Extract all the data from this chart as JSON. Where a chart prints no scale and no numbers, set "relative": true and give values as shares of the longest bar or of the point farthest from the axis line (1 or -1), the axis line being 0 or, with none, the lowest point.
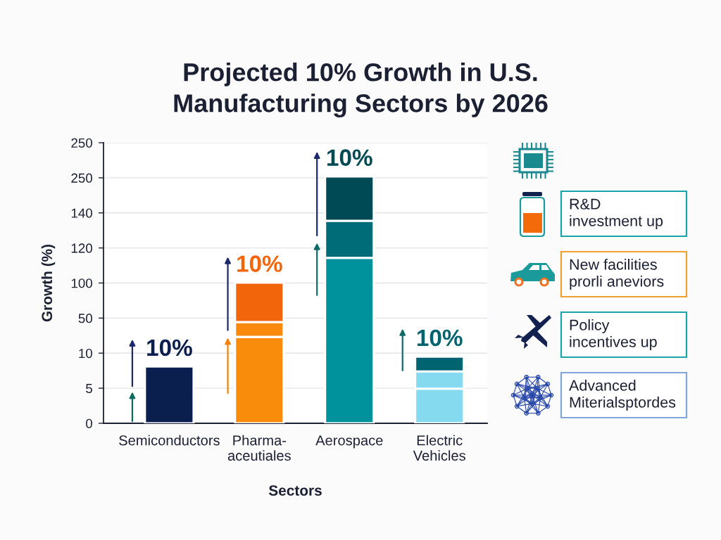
{
  "chart_data": {
    "type": "bar",
    "title": "Projected 10% Growth in U.S.\nManufacturing Sectors by 2026",
    "xlabel": "Sectors",
    "ylabel": "Growth (%)",
    "categories": [
      "Semiconductors",
      "Pharma-\naceutiales",
      "Aerospace",
      "Electric\nVehicles"
    ],
    "y_categories": [
      "250",
      "250",
      "140",
      "120",
      "100",
      "50",
      "10",
      "5",
      "0"
    ],
    "relative": true,
    "stacked": true,
    "series": [
      {
        "colors": [
          "#0b1f4f",
          "#f98c0a",
          "#00929c",
          "#86daf0"
        ],
        "values": [
          0.23,
          0.35,
          0.67,
          0.14
        ]
      },
      {
        "colors": [
          null,
          "#f98a0e",
          "#006c78",
          "#86daf0"
        ],
        "values": [
          null,
          0.06,
          0.15,
          0.07
        ]
      },
      {
        "colors": [
          null,
          "#f2650a",
          "#004a55",
          "#006470"
        ],
        "values": [
          null,
          0.16,
          0.18,
          0.06
        ]
      }
    ],
    "grid": "y",
    "annotations": [
      {
        "text": "10%",
        "x": "Semiconductors",
        "y": 0.23
      },
      {
        "text": "10%",
        "x": "Pharma-\naceutiales",
        "y": 0.57
      },
      {
        "text": "10%",
        "x": "Aerospace",
        "y": 1.0
      },
      {
        "text": "10%",
        "x": "Electric\nVehicles",
        "y": 0.27
      },
      "R&D\ninvestment up",
      "New facilities\nprorli aneviors",
      "Policy\nincentives up",
      "Advanced\nMiterialsptordes"
    ]
  }
}
